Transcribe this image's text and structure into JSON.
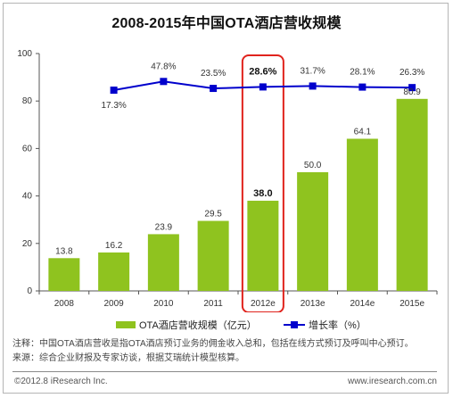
{
  "title": "2008-2015年中国OTA酒店营收规模",
  "chart_data": {
    "type": "bar",
    "categories": [
      "2008",
      "2009",
      "2010",
      "2011",
      "2012e",
      "2013e",
      "2014e",
      "2015e"
    ],
    "ylim": [
      0,
      100
    ],
    "yticks": [
      "0",
      "20",
      "40",
      "60",
      "80",
      "100"
    ],
    "grid": false,
    "legend_position": "bottom",
    "series": [
      {
        "name": "OTA酒店营收规模（亿元）",
        "type": "bar",
        "values": [
          13.8,
          16.2,
          23.9,
          29.5,
          38.0,
          50.0,
          64.1,
          80.9
        ],
        "labels": [
          "13.8",
          "16.2",
          "23.9",
          "29.5",
          "38.0",
          "50.0",
          "64.1",
          "80.9"
        ],
        "color": "#8fc31f"
      },
      {
        "name": "增长率（%）",
        "type": "line",
        "values": [
          null,
          17.3,
          47.8,
          23.5,
          28.6,
          31.7,
          28.1,
          26.3
        ],
        "labels": [
          null,
          "17.3%",
          "47.8%",
          "23.5%",
          "28.6%",
          "31.7%",
          "28.1%",
          "26.3%"
        ],
        "color": "#0000cc"
      }
    ],
    "highlight": {
      "category": "2012e",
      "color": "#e0231d"
    }
  },
  "notes": {
    "line1": "注释：中国OTA酒店营收是指OTA酒店预订业务的佣金收入总和，包括在线方式预订及呼叫中心预订。",
    "line2": "来源：综合企业财报及专家访谈，根据艾瑞统计模型核算。"
  },
  "footer": {
    "copyright": "©2012.8 iResearch Inc.",
    "website": "www.iresearch.com.cn"
  }
}
